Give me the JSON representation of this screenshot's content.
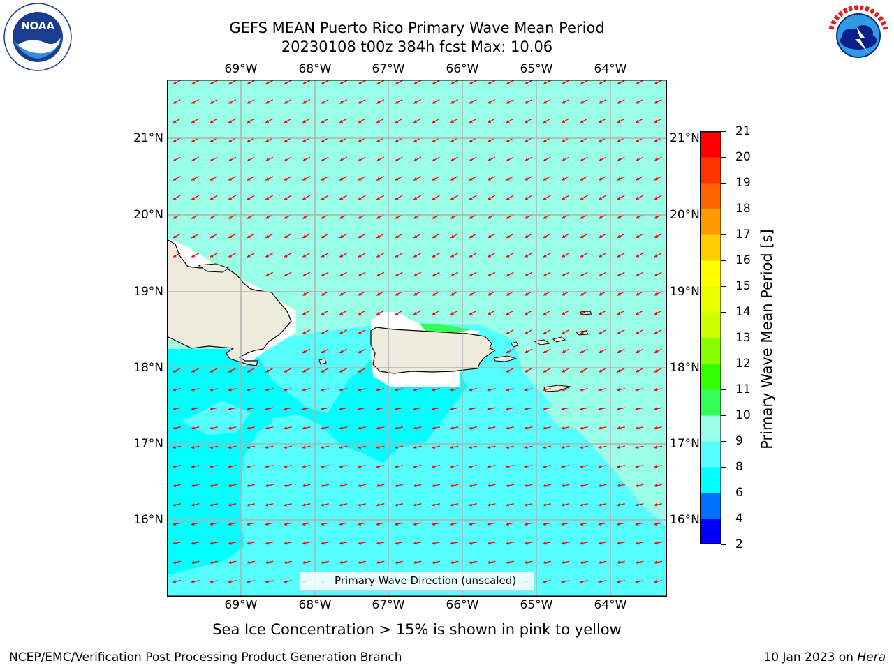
{
  "title": {
    "line1": "GEFS MEAN Puerto Rico Primary Wave Mean Period",
    "line2": "20230108 t00z 384h fcst   Max: 10.06"
  },
  "axes": {
    "lon_labels": [
      "69°W",
      "68°W",
      "67°W",
      "66°W",
      "65°W",
      "64°W"
    ],
    "lat_labels": [
      "21°N",
      "20°N",
      "19°N",
      "18°N",
      "17°N",
      "16°N"
    ]
  },
  "colorbar": {
    "label": "Primary Wave Mean Period [s]",
    "ticks": [
      "2",
      "4",
      "6",
      "8",
      "9",
      "10",
      "11",
      "12",
      "13",
      "14",
      "15",
      "16",
      "17",
      "18",
      "19",
      "20",
      "21"
    ],
    "colors": [
      "#0000ff",
      "#0070ff",
      "#00ffff",
      "#55ffff",
      "#99ffe6",
      "#33ff55",
      "#33ff00",
      "#88ff00",
      "#ccff00",
      "#e8ff00",
      "#ffff00",
      "#ffcc00",
      "#ff9900",
      "#ff6600",
      "#ff3300",
      "#ff0000"
    ]
  },
  "legend": {
    "label": "Primary Wave Direction (unscaled)"
  },
  "subtitle": "Sea Ice Concentration > 15% is shown in pink to yellow",
  "footer": {
    "left": "NCEP/EMC/Verification Post Processing Product Generation Branch",
    "right_date": "10 Jan 2023 on ",
    "right_host": "Hera"
  },
  "logos": {
    "noaa": "NOAA",
    "nws": "NATIONAL WEATHER SERVICE"
  },
  "map": {
    "region": "Puerto Rico",
    "field_colors": {
      "open_water_9_10s": "#99ffe6",
      "swell_8_9s": "#55ffff",
      "swell_6_8s": "#00ffff",
      "patch_10_11s": "#33ff55",
      "land": "#eeecdc",
      "arrows": "#ff0000"
    },
    "wave_direction": "towards southwest"
  }
}
